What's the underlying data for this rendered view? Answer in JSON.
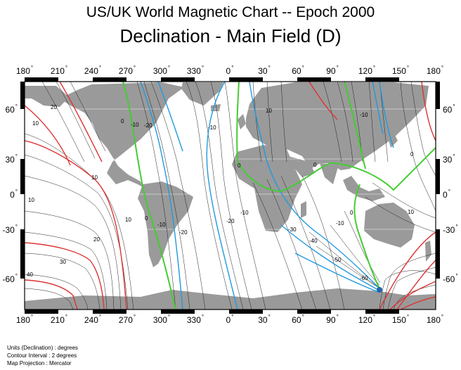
{
  "title": "US/UK World Magnetic Chart  --  Epoch 2000",
  "subtitle": "Declination - Main Field (D)",
  "lon_labels": [
    "180",
    "210",
    "240",
    "270",
    "300",
    "330",
    "0",
    "30",
    "60",
    "90",
    "120",
    "150",
    "180"
  ],
  "lat_labels": [
    "60",
    "30",
    "0",
    "-30",
    "-60"
  ],
  "degree_symbol": "°",
  "footer": [
    "Units (Declination) : degrees",
    "Contour Interval : 2 degrees",
    "Map Projection : Mercator"
  ],
  "contour_labels": [
    "20",
    "10",
    "10",
    "10",
    "20",
    "30",
    "40",
    "10",
    "0",
    "0",
    "-10",
    "-20",
    "-10",
    "-20",
    "-10",
    "0",
    "0",
    "-10",
    "-20",
    "-30",
    "-40",
    "-50",
    "-60",
    "-10",
    "0",
    "10",
    "10",
    "-10",
    "0"
  ],
  "colors": {
    "land": "#9a9a9a",
    "zero_contour": "#44cc33",
    "positive_major": "#dd3333",
    "negative_major": "#2299dd",
    "minor_contour": "#222222",
    "pole_positive": "#aa2222",
    "pole_negative": "#2266aa"
  }
}
